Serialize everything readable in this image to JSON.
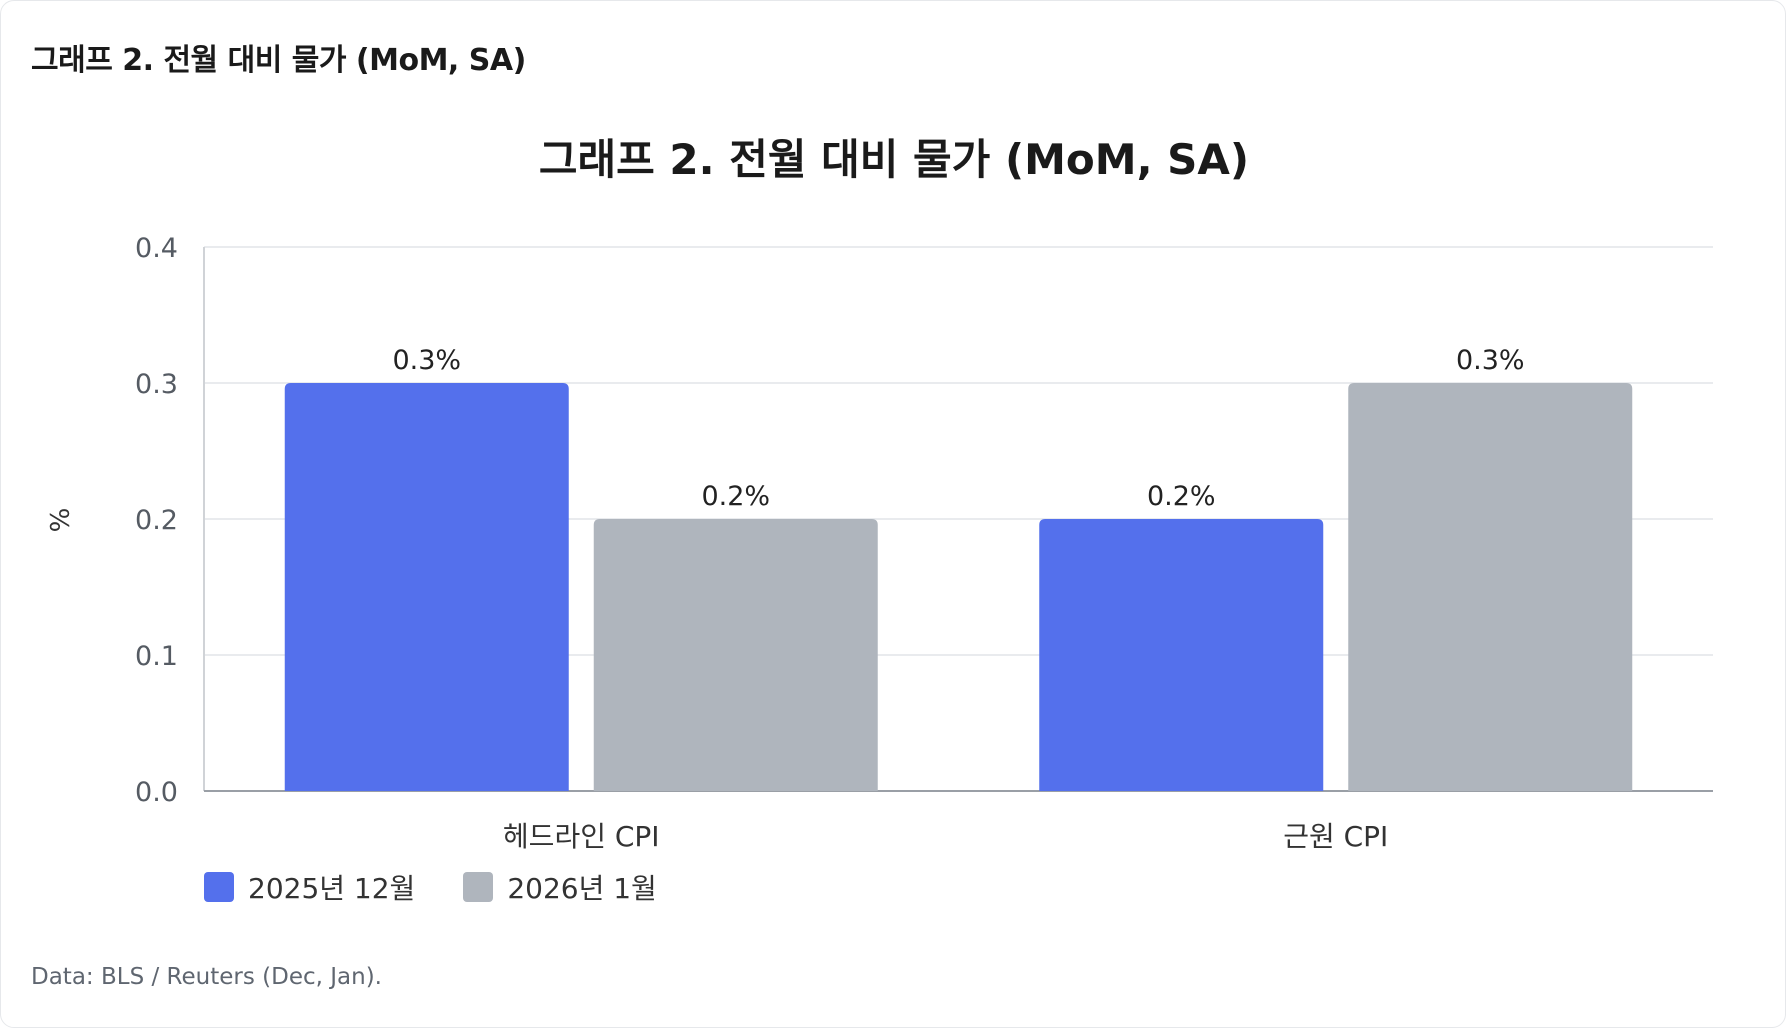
{
  "card_title": "그래프 2. 전월 대비 물가 (MoM, SA)",
  "source_note": "Data: BLS / Reuters (Dec, Jan).",
  "colors": {
    "series_dec": "#5470ec",
    "series_jan": "#afb5bd",
    "grid": "#e9ebee",
    "axis": "#9a9fa6"
  },
  "chart_data": {
    "type": "bar",
    "title": "그래프 2. 전월 대비 물가 (MoM, SA)",
    "xlabel": "",
    "ylabel": "%",
    "categories": [
      "헤드라인 CPI",
      "근원 CPI"
    ],
    "ylim": [
      0,
      0.4
    ],
    "yticks": [
      "0.0",
      "0.1",
      "0.2",
      "0.3",
      "0.4"
    ],
    "grid": true,
    "legend_position": "bottom-left",
    "series": [
      {
        "name": "2025년 12월",
        "values": [
          0.3,
          0.2
        ],
        "labels": [
          "0.3%",
          "0.2%"
        ],
        "color": "#5470ec"
      },
      {
        "name": "2026년 1월",
        "values": [
          0.2,
          0.3
        ],
        "labels": [
          "0.2%",
          "0.3%"
        ],
        "color": "#afb5bd"
      }
    ]
  }
}
